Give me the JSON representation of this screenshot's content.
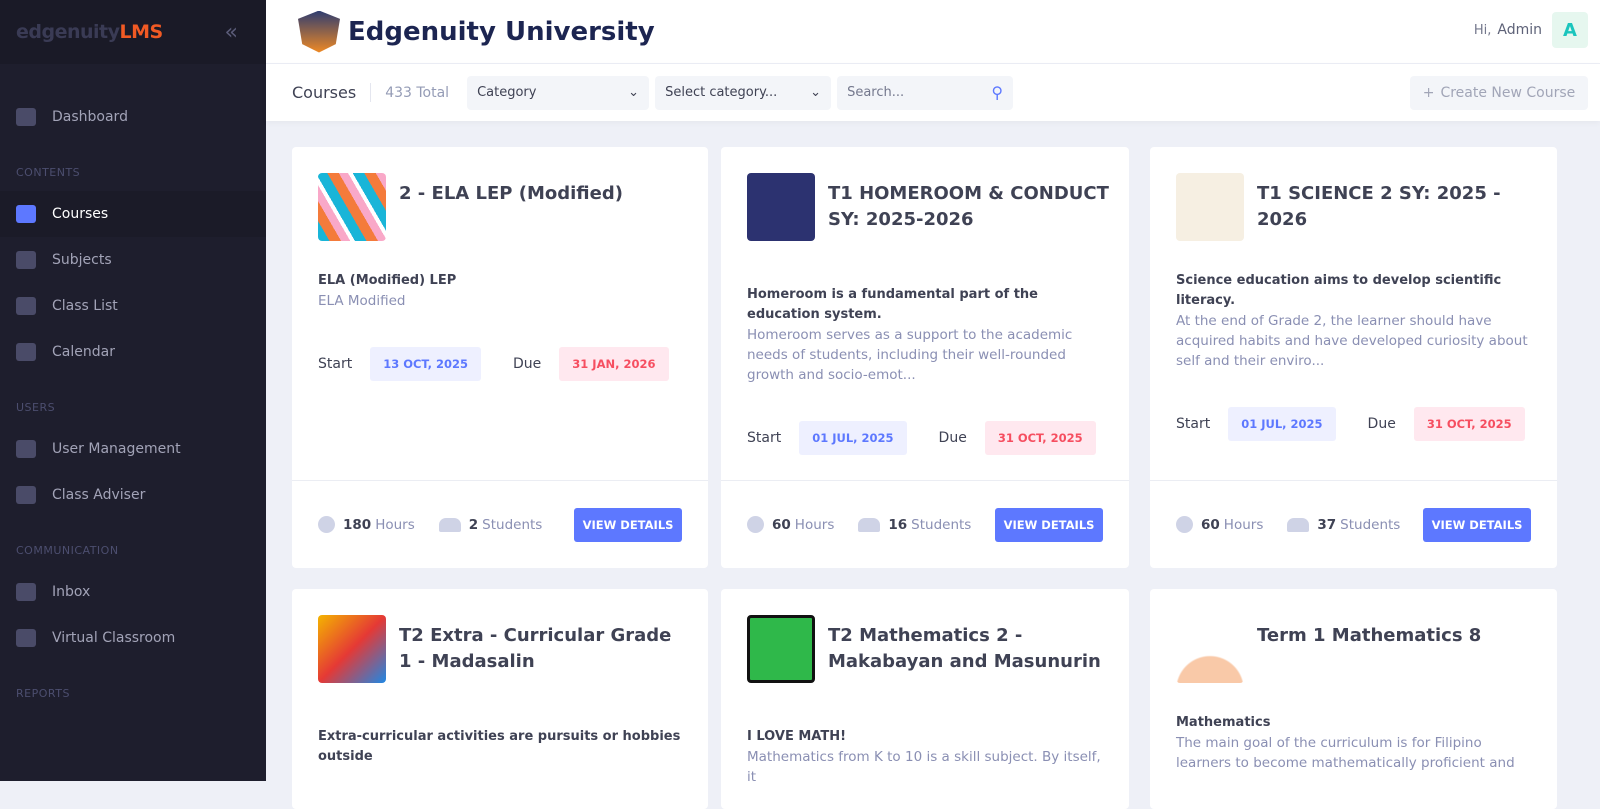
{
  "sidebar": {
    "logo_a": "edgenuity",
    "logo_b": "LMS",
    "collapse_icon": "double-chevron-left-icon",
    "dashboard": "Dashboard",
    "sections": {
      "contents": "CONTENTS",
      "users": "USERS",
      "communication": "COMMUNICATION",
      "reports": "REPORTS"
    },
    "items": {
      "courses": "Courses",
      "subjects": "Subjects",
      "class_list": "Class List",
      "calendar": "Calendar",
      "user_management": "User Management",
      "class_adviser": "Class Adviser",
      "inbox": "Inbox",
      "virtual_classroom": "Virtual Classroom"
    }
  },
  "header": {
    "title": "Edgenuity University",
    "greeting": "Hi,",
    "user": "Admin",
    "avatar": "A"
  },
  "toolbar": {
    "title": "Courses",
    "total": "433 Total",
    "category": "Category",
    "select_category": "Select category...",
    "search_placeholder": "Search...",
    "create": "Create New Course"
  },
  "accent": "#5d78ff",
  "courses": [
    {
      "title": "2 - ELA LEP (Modified)",
      "subtitle": "ELA (Modified) LEP",
      "description": "ELA Modified",
      "start_label": "Start",
      "start": "13 OCT, 2025",
      "due_label": "Due",
      "due": "31 JAN, 2026",
      "hours": "180",
      "hours_label": "Hours",
      "students": "2",
      "students_label": "Students",
      "button": "VIEW DETAILS"
    },
    {
      "title": "T1 HOMEROOM & CONDUCT SY: 2025-2026",
      "subtitle": "Homeroom is a fundamental part of the education system.",
      "description": "Homeroom serves as a support to the academic needs of students, including their well-rounded growth and socio-emot...",
      "start_label": "Start",
      "start": "01 JUL, 2025",
      "due_label": "Due",
      "due": "31 OCT, 2025",
      "hours": "60",
      "hours_label": "Hours",
      "students": "16",
      "students_label": "Students",
      "button": "VIEW DETAILS"
    },
    {
      "title": "T1 SCIENCE 2 SY: 2025 - 2026",
      "subtitle": "Science education aims to develop scientific literacy.",
      "description": "At the end of Grade 2, the learner should have acquired habits and have developed curiosity about self and their enviro...",
      "start_label": "Start",
      "start": "01 JUL, 2025",
      "due_label": "Due",
      "due": "31 OCT, 2025",
      "hours": "60",
      "hours_label": "Hours",
      "students": "37",
      "students_label": "Students",
      "button": "VIEW DETAILS"
    },
    {
      "title": "T2 Extra - Curricular Grade 1 - Madasalin",
      "subtitle": "Extra-curricular activities are pursuits or hobbies outside"
    },
    {
      "title": "T2 Mathematics 2 - Makabayan and Masunurin",
      "subtitle": "I LOVE MATH!",
      "description": "Mathematics from K to 10 is a skill subject. By itself, it"
    },
    {
      "title": "Term 1 Mathematics 8",
      "subtitle": "Mathematics",
      "description": "The main goal of the curriculum is for Filipino learners to become mathematically proficient and"
    }
  ]
}
